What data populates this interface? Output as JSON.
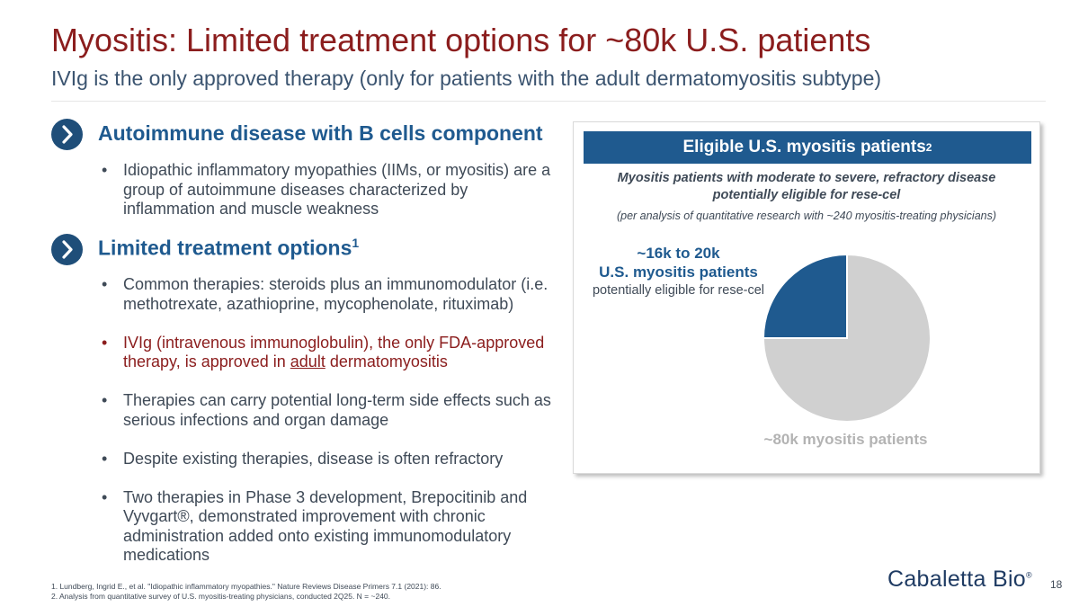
{
  "title": "Myositis: Limited treatment options for ~80k U.S. patients",
  "subtitle": "IVIg is the only approved therapy (only for patients with the adult dermatomyositis subtype)",
  "section1": {
    "heading": "Autoimmune disease with B cells component",
    "icon": "chevron-right-icon",
    "bullets": [
      "Idiopathic inflammatory myopathies (IIMs, or myositis) are a group of autoimmune diseases characterized by inflammation and muscle weakness"
    ]
  },
  "section2": {
    "heading": "Limited treatment options",
    "heading_sup": "1",
    "icon": "chevron-right-icon",
    "bullets": [
      "Common therapies: steroids plus an immunomodulator (i.e. methotrexate, azathioprine, mycophenolate, rituximab)",
      "IVIg (intravenous immunoglobulin), the only FDA-approved therapy, is approved in adult dermatomyositis",
      "Therapies can carry potential long-term side effects such as serious infections and organ damage",
      "Despite existing therapies, disease is often refractory",
      "Two therapies in Phase 3 development, Brepocitinib and Vyvgart®, demonstrated improvement with chronic administration added onto existing immunomodulatory medications"
    ],
    "ivig_parts": {
      "pre": "IVIg (intravenous immunoglobulin), the only FDA-approved therapy, is approved in ",
      "underlined": "adult",
      "post": " dermatomyositis"
    }
  },
  "panel": {
    "header": "Eligible U.S. myositis patients",
    "header_sup": "2",
    "subheading": "Myositis patients with moderate to severe, refractory disease potentially eligible for rese-cel",
    "note": "(per analysis of quantitative research with ~240 myositis-treating physicians)",
    "callout_line1": "~16k to 20k",
    "callout_line2": "U.S. myositis patients",
    "callout_line3": "potentially eligible for rese-cel",
    "total_label": "~80k myositis patients"
  },
  "chart_data": {
    "type": "pie",
    "slices": [
      {
        "label": "~16k to 20k U.S. myositis patients potentially eligible for rese-cel",
        "value": 0.25,
        "color": "#1f5a8f"
      },
      {
        "label": "~80k myositis patients",
        "value": 0.75,
        "color": "#d0d0d0"
      }
    ]
  },
  "footnotes": [
    "1.  Lundberg, Ingrid E., et al. \"Idiopathic inflammatory myopathies.\" Nature Reviews Disease Primers 7.1 (2021): 86.",
    "2.  Analysis from quantitative survey of U.S. myositis-treating physicians, conducted 2Q25. N = ~240."
  ],
  "logo": "Cabaletta Bio",
  "logo_mark": "®",
  "page_number": "18"
}
